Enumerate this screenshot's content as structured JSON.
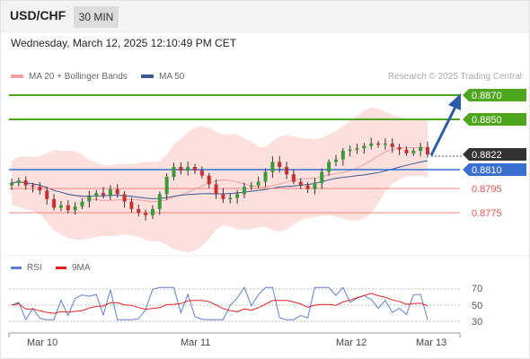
{
  "header": {
    "symbol": "USD/CHF",
    "timeframe": "30 MIN"
  },
  "timestamp": "Wednesday, March 12, 2025 12:10:49 PM CET",
  "legend": {
    "bollinger": {
      "label": "MA 20 + Bollinger Bands",
      "color": "#f08080"
    },
    "ma50": {
      "label": "MA 50",
      "color": "#3a5a95"
    },
    "rsi": {
      "label": "RSI",
      "color": "#5b7fd6"
    },
    "ma9": {
      "label": "9MA",
      "color": "#e02020"
    }
  },
  "copyright": "Research © 2025 Trading Central",
  "levels": [
    {
      "value": "0.8870",
      "color": "#4ea51e",
      "style": "badge"
    },
    {
      "value": "0.8850",
      "color": "#4ea51e",
      "style": "badge"
    },
    {
      "value": "0.8822",
      "color": "#333333",
      "style": "badge"
    },
    {
      "value": "0.8810",
      "color": "#3a6fd0",
      "style": "badge"
    },
    {
      "value": "0.8795",
      "color": "#e05050",
      "style": "text"
    },
    {
      "value": "0.8775",
      "color": "#e05050",
      "style": "text"
    }
  ],
  "rsi_axis": [
    "70",
    "50",
    "30"
  ],
  "x_labels": [
    "Mar 10",
    "Mar 11",
    "Mar 12",
    "Mar 13"
  ],
  "chart_data": {
    "type": "candlestick",
    "price_axis_labels": [
      "0.8870",
      "0.8850",
      "0.8822",
      "0.8810",
      "0.8795",
      "0.8775"
    ],
    "close_series": [
      0.8799,
      0.8801,
      0.8797,
      0.8796,
      0.8793,
      0.8786,
      0.8779,
      0.8781,
      0.8777,
      0.878,
      0.8784,
      0.8788,
      0.8791,
      0.8789,
      0.8794,
      0.879,
      0.8784,
      0.8778,
      0.8775,
      0.8773,
      0.8778,
      0.879,
      0.8804,
      0.8812,
      0.8809,
      0.8812,
      0.8809,
      0.8805,
      0.8798,
      0.879,
      0.8786,
      0.8787,
      0.879,
      0.8796,
      0.8797,
      0.88,
      0.8808,
      0.8816,
      0.8812,
      0.8806,
      0.88,
      0.8797,
      0.8794,
      0.8799,
      0.8808,
      0.8816,
      0.8818,
      0.8825,
      0.8826,
      0.8827,
      0.8829,
      0.8831,
      0.883,
      0.8831,
      0.8828,
      0.8826,
      0.8823,
      0.8825,
      0.8828,
      0.8822
    ],
    "rsi_axis": [
      70,
      50,
      30
    ],
    "x_labels": [
      "Mar 10",
      "Mar 11",
      "Mar 12",
      "Mar 13"
    ],
    "projection_target": 0.887
  }
}
